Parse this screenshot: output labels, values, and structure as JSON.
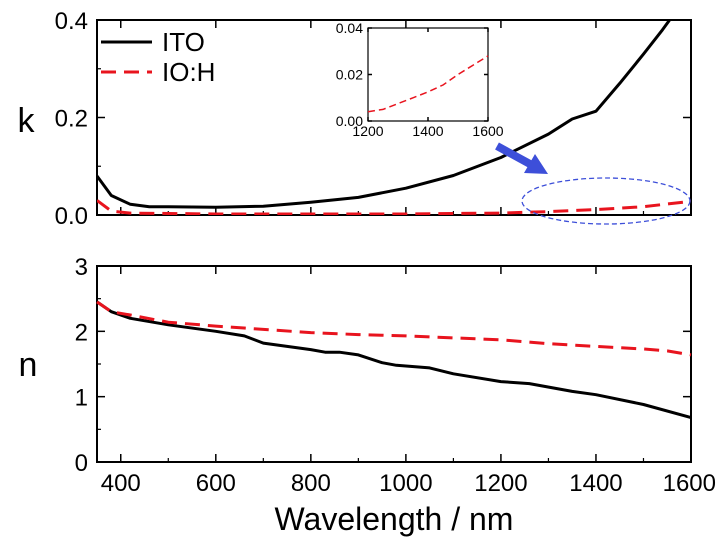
{
  "chart_data": [
    {
      "panel": "top",
      "type": "line",
      "xlabel": "",
      "ylabel": "k",
      "xlim": [
        350,
        1600
      ],
      "ylim": [
        0,
        0.4
      ],
      "x_ticks": [
        400,
        600,
        800,
        1000,
        1200,
        1400,
        1600
      ],
      "y_ticks": [
        0.0,
        0.2,
        0.4
      ],
      "y_tick_labels": [
        "0.0",
        "0.2",
        "0.4"
      ],
      "legend_position": "top-left",
      "series": [
        {
          "name": "ITO",
          "color": "#000000",
          "style": "solid",
          "points": [
            [
              350,
              0.08
            ],
            [
              380,
              0.04
            ],
            [
              420,
              0.022
            ],
            [
              460,
              0.017
            ],
            [
              500,
              0.017
            ],
            [
              600,
              0.016
            ],
            [
              700,
              0.018
            ],
            [
              800,
              0.026
            ],
            [
              900,
              0.036
            ],
            [
              1000,
              0.055
            ],
            [
              1100,
              0.081
            ],
            [
              1200,
              0.118
            ],
            [
              1300,
              0.166
            ],
            [
              1350,
              0.197
            ],
            [
              1400,
              0.213
            ],
            [
              1450,
              0.27
            ],
            [
              1500,
              0.33
            ],
            [
              1540,
              0.38
            ],
            [
              1555,
              0.4
            ]
          ]
        },
        {
          "name": "IO:H",
          "color": "#e8141e",
          "style": "dashed",
          "points": [
            [
              350,
              0.03
            ],
            [
              380,
              0.008
            ],
            [
              420,
              0.004
            ],
            [
              500,
              0.003
            ],
            [
              600,
              0.002
            ],
            [
              800,
              0.002
            ],
            [
              1000,
              0.002
            ],
            [
              1100,
              0.003
            ],
            [
              1200,
              0.004
            ],
            [
              1300,
              0.007
            ],
            [
              1400,
              0.011
            ],
            [
              1500,
              0.017
            ],
            [
              1600,
              0.028
            ]
          ]
        }
      ]
    },
    {
      "panel": "inset",
      "type": "line",
      "xlim": [
        1200,
        1600
      ],
      "ylim": [
        0,
        0.04
      ],
      "x_ticks": [
        1200,
        1400,
        1600
      ],
      "y_ticks": [
        0.0,
        0.02,
        0.04
      ],
      "y_tick_labels": [
        "0.00",
        "0.02",
        "0.04"
      ],
      "series": [
        {
          "name": "IO:H",
          "color": "#e8141e",
          "style": "dashed",
          "points": [
            [
              1200,
              0.004
            ],
            [
              1250,
              0.005
            ],
            [
              1300,
              0.0075
            ],
            [
              1350,
              0.01
            ],
            [
              1400,
              0.0125
            ],
            [
              1450,
              0.0155
            ],
            [
              1500,
              0.02
            ],
            [
              1550,
              0.024
            ],
            [
              1600,
              0.028
            ]
          ]
        }
      ]
    },
    {
      "panel": "bottom",
      "type": "line",
      "xlabel": "Wavelength / nm",
      "ylabel": "n",
      "xlim": [
        350,
        1600
      ],
      "ylim": [
        0,
        3
      ],
      "x_ticks": [
        400,
        600,
        800,
        1000,
        1200,
        1400,
        1600
      ],
      "y_ticks": [
        0,
        1,
        2,
        3
      ],
      "y_tick_labels": [
        "0",
        "1",
        "2",
        "3"
      ],
      "series": [
        {
          "name": "ITO",
          "color": "#000000",
          "style": "solid",
          "points": [
            [
              350,
              2.45
            ],
            [
              380,
              2.3
            ],
            [
              420,
              2.2
            ],
            [
              500,
              2.1
            ],
            [
              600,
              2.0
            ],
            [
              660,
              1.93
            ],
            [
              700,
              1.82
            ],
            [
              800,
              1.72
            ],
            [
              830,
              1.68
            ],
            [
              860,
              1.68
            ],
            [
              900,
              1.64
            ],
            [
              950,
              1.52
            ],
            [
              980,
              1.48
            ],
            [
              1050,
              1.44
            ],
            [
              1100,
              1.35
            ],
            [
              1200,
              1.23
            ],
            [
              1260,
              1.2
            ],
            [
              1350,
              1.08
            ],
            [
              1400,
              1.03
            ],
            [
              1500,
              0.88
            ],
            [
              1600,
              0.68
            ]
          ]
        },
        {
          "name": "IO:H",
          "color": "#e8141e",
          "style": "dashed",
          "points": [
            [
              350,
              2.45
            ],
            [
              380,
              2.3
            ],
            [
              420,
              2.25
            ],
            [
              500,
              2.14
            ],
            [
              600,
              2.08
            ],
            [
              700,
              2.03
            ],
            [
              800,
              1.98
            ],
            [
              900,
              1.95
            ],
            [
              1000,
              1.93
            ],
            [
              1100,
              1.9
            ],
            [
              1200,
              1.87
            ],
            [
              1300,
              1.81
            ],
            [
              1400,
              1.77
            ],
            [
              1500,
              1.73
            ],
            [
              1550,
              1.7
            ],
            [
              1600,
              1.64
            ]
          ]
        }
      ]
    }
  ],
  "annotation": {
    "arrow_color": "#3d4fd9",
    "ellipse_color": "#3d4fd9"
  }
}
